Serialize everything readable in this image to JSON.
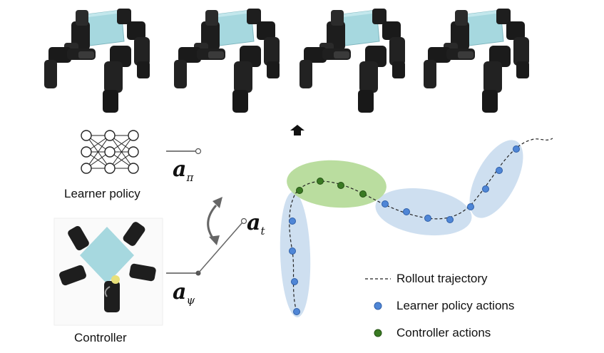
{
  "labels": {
    "learner_policy": "Learner policy",
    "controller": "Controller",
    "a_pi_base": "a",
    "a_pi_sub": "π",
    "a_t_base": "a",
    "a_t_sub": "t",
    "a_psi_base": "a",
    "a_psi_sub": "ψ"
  },
  "legend": {
    "rollout": "Rollout trajectory",
    "learner_actions": "Learner policy actions",
    "controller_actions": "Controller actions"
  },
  "colors": {
    "learner_dot": "#4f86d6",
    "controller_dot": "#3a7a23",
    "learner_region": "#c9dcee",
    "controller_region": "#b6db9a",
    "cube": "#a6d8df",
    "robot": "#1d1d1d"
  },
  "icons": [
    "neural-network-icon",
    "robot-hand-icon",
    "rotate-arrow-icon",
    "up-arrow-icon"
  ]
}
